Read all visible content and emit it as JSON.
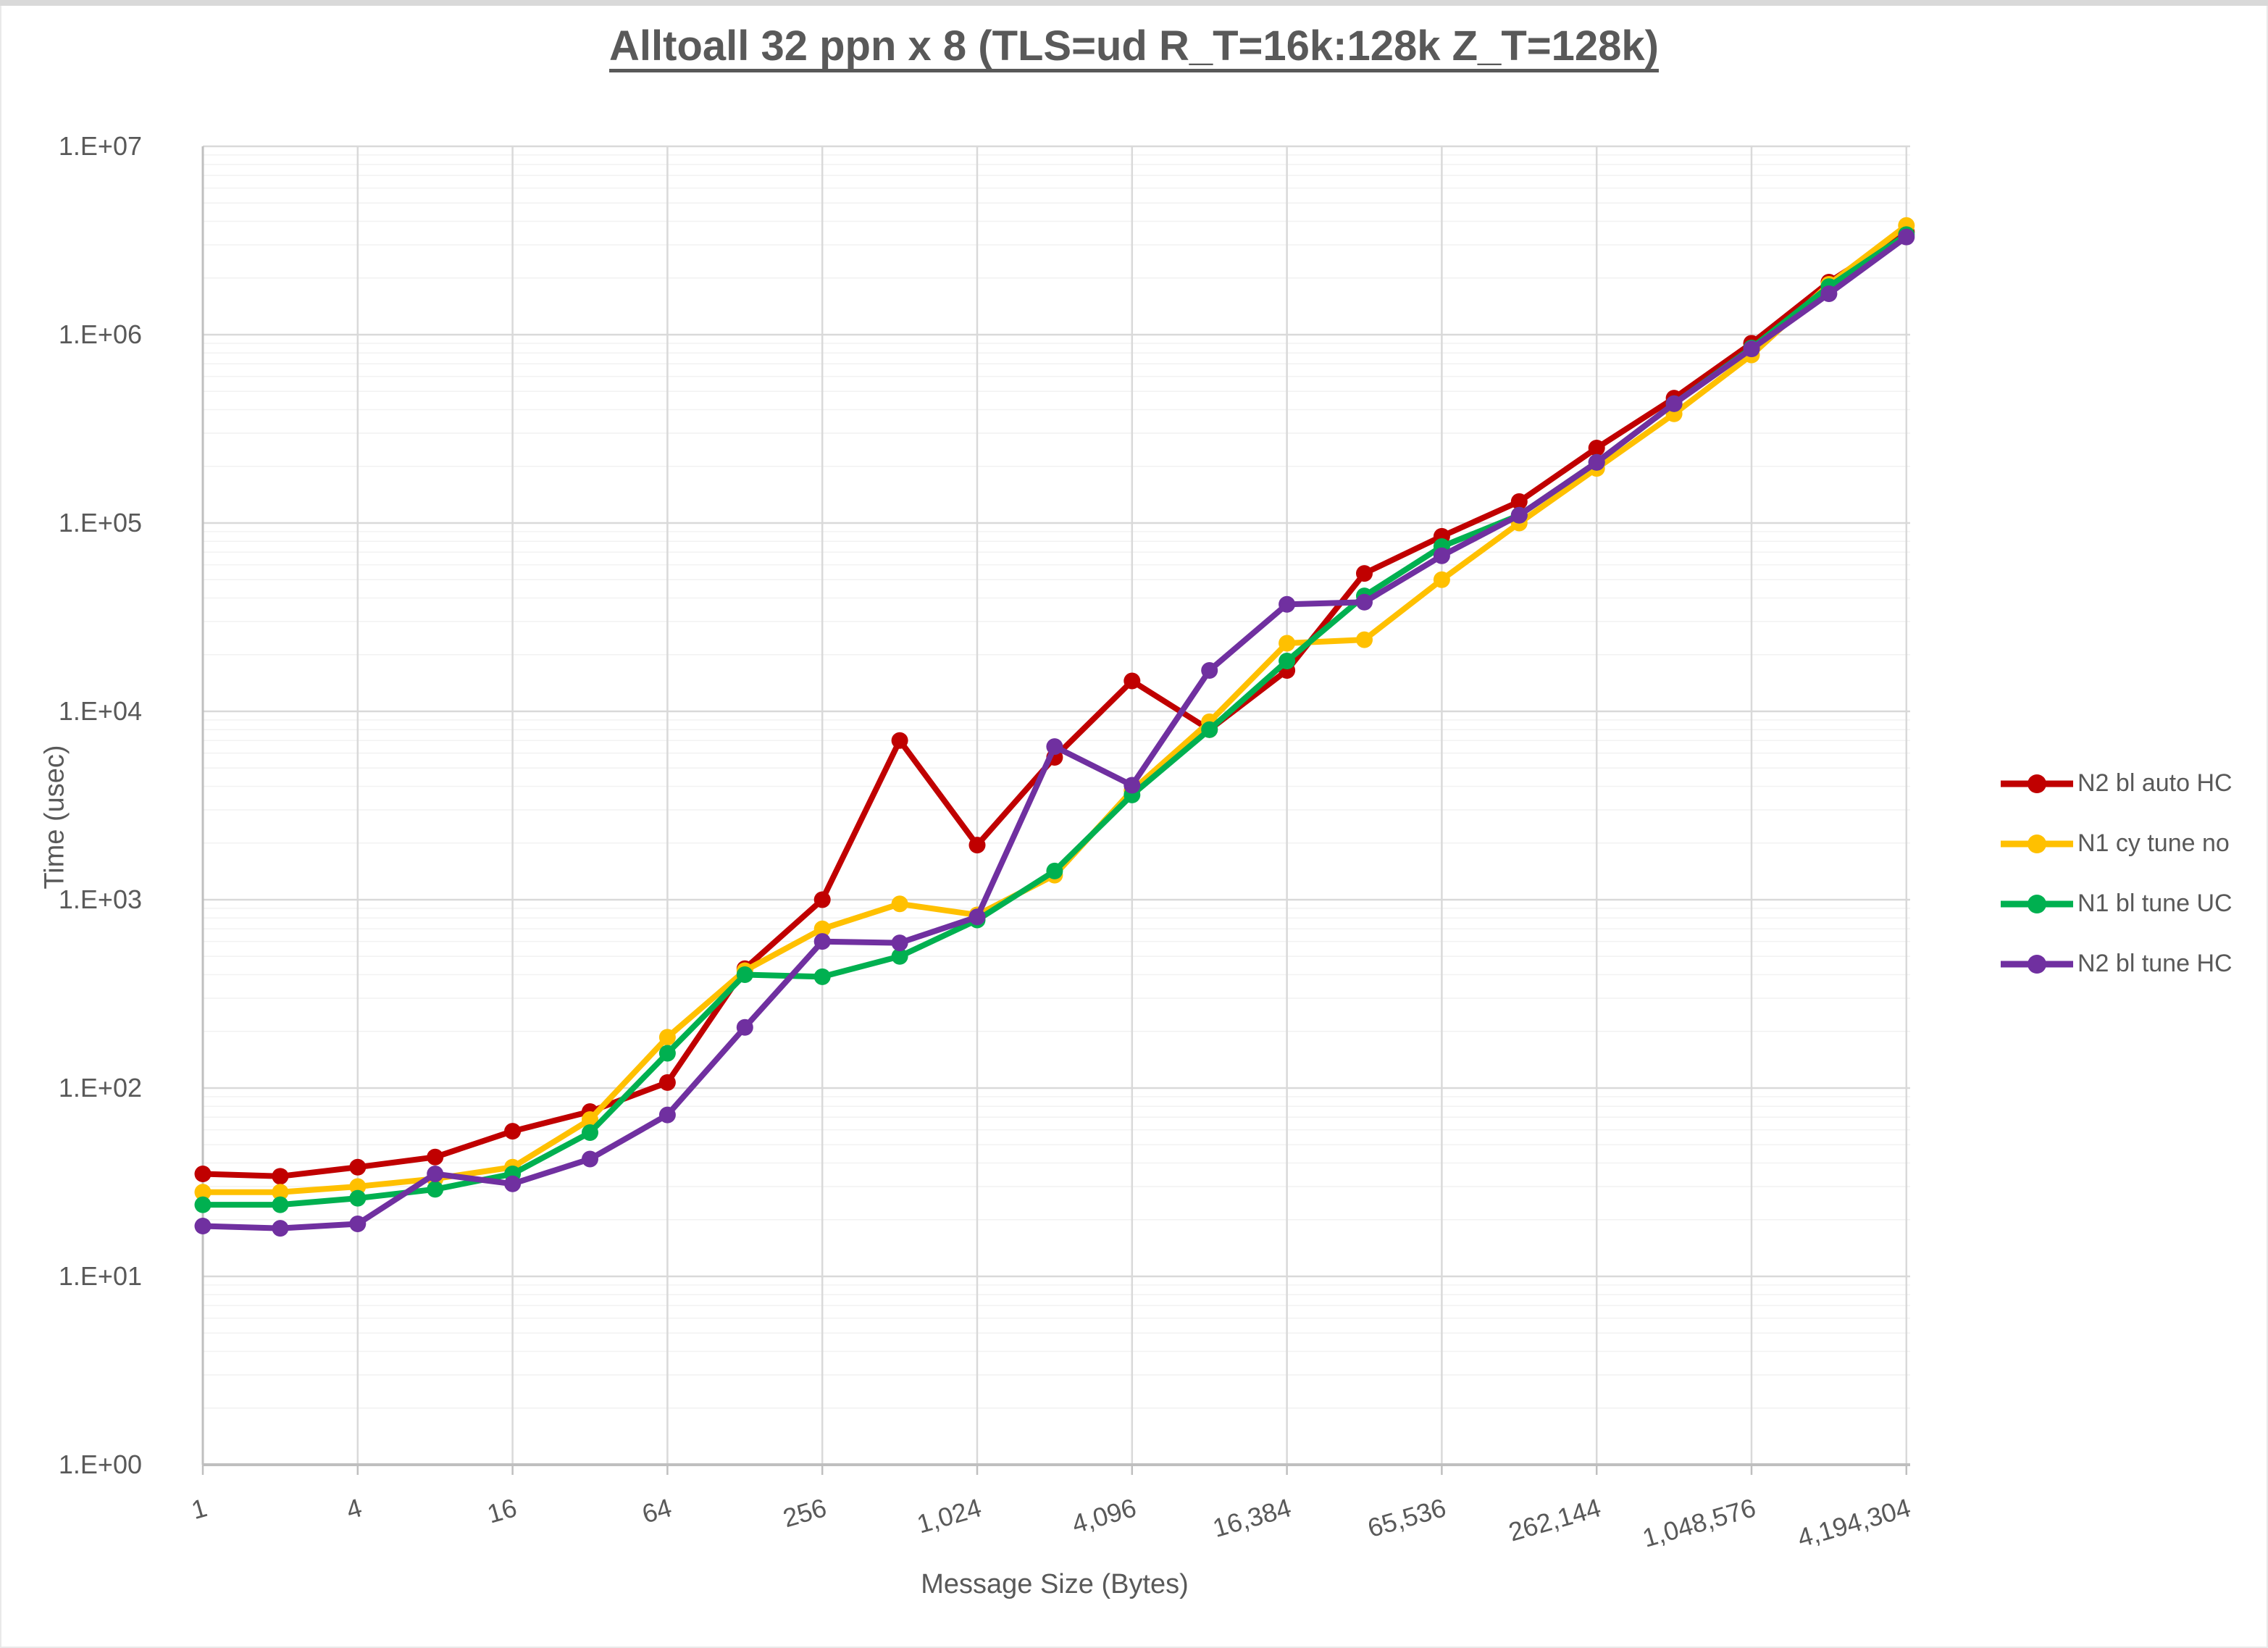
{
  "page": {
    "title": "Alltoall 32 ppn x 8 (TLS=ud R_T=16k:128k Z_T=128k)"
  },
  "chart_data": {
    "type": "line",
    "title": "Alltoall 32 ppn x 8 (TLS=ud R_T=16k:128k Z_T=128k)",
    "xlabel": "Message Size (Bytes)",
    "ylabel": "Time (usec)",
    "x_scale": "log2",
    "y_scale": "log10",
    "ylim": [
      1,
      10000000
    ],
    "grid": {
      "major_color": "#d9d9d9",
      "minor_color": "#f2f2f2",
      "axis_color": "#bfbfbf",
      "minor_on": true
    },
    "legend_position": "right",
    "text_color": "#595959",
    "y_tick_labels": [
      "1.E+00",
      "1.E+01",
      "1.E+02",
      "1.E+03",
      "1.E+04",
      "1.E+05",
      "1.E+06",
      "1.E+07"
    ],
    "x_tick_labels": [
      "1",
      "4",
      "16",
      "64",
      "256",
      "1,024",
      "4,096",
      "16,384",
      "65,536",
      "262,144",
      "1,048,576",
      "4,194,304"
    ],
    "x": [
      1,
      2,
      4,
      8,
      16,
      32,
      64,
      128,
      256,
      512,
      1024,
      2048,
      4096,
      8192,
      16384,
      32768,
      65536,
      131072,
      262144,
      524288,
      1048576,
      2097152,
      4194304
    ],
    "series": [
      {
        "name": "N2 bl auto HC",
        "color": "#C00000",
        "values": [
          35,
          34,
          38,
          43,
          59,
          75,
          107,
          430,
          1000,
          7000,
          1950,
          5700,
          14500,
          8000,
          16500,
          54000,
          85000,
          130000,
          250000,
          460000,
          900000,
          1900000,
          3500000
        ]
      },
      {
        "name": "N1 cy tune no",
        "color": "#FFC000",
        "values": [
          28,
          28,
          30,
          33,
          38,
          68,
          186,
          420,
          700,
          950,
          830,
          1350,
          3800,
          8800,
          23000,
          24000,
          50000,
          100000,
          195000,
          380000,
          780000,
          1850000,
          3800000
        ]
      },
      {
        "name": "N1 bl tune UC",
        "color": "#00B050",
        "values": [
          24,
          24,
          26,
          29,
          35,
          58,
          153,
          400,
          390,
          500,
          780,
          1420,
          3600,
          8000,
          18500,
          41000,
          75000,
          110000,
          210000,
          430000,
          850000,
          1800000,
          3400000
        ]
      },
      {
        "name": "N2 bl tune HC",
        "color": "#7030A0",
        "values": [
          18.5,
          18,
          19,
          35,
          31,
          42,
          72,
          210,
          600,
          590,
          810,
          6500,
          4050,
          16500,
          37000,
          38000,
          67000,
          110000,
          210000,
          430000,
          840000,
          1650000,
          3300000
        ]
      }
    ]
  }
}
